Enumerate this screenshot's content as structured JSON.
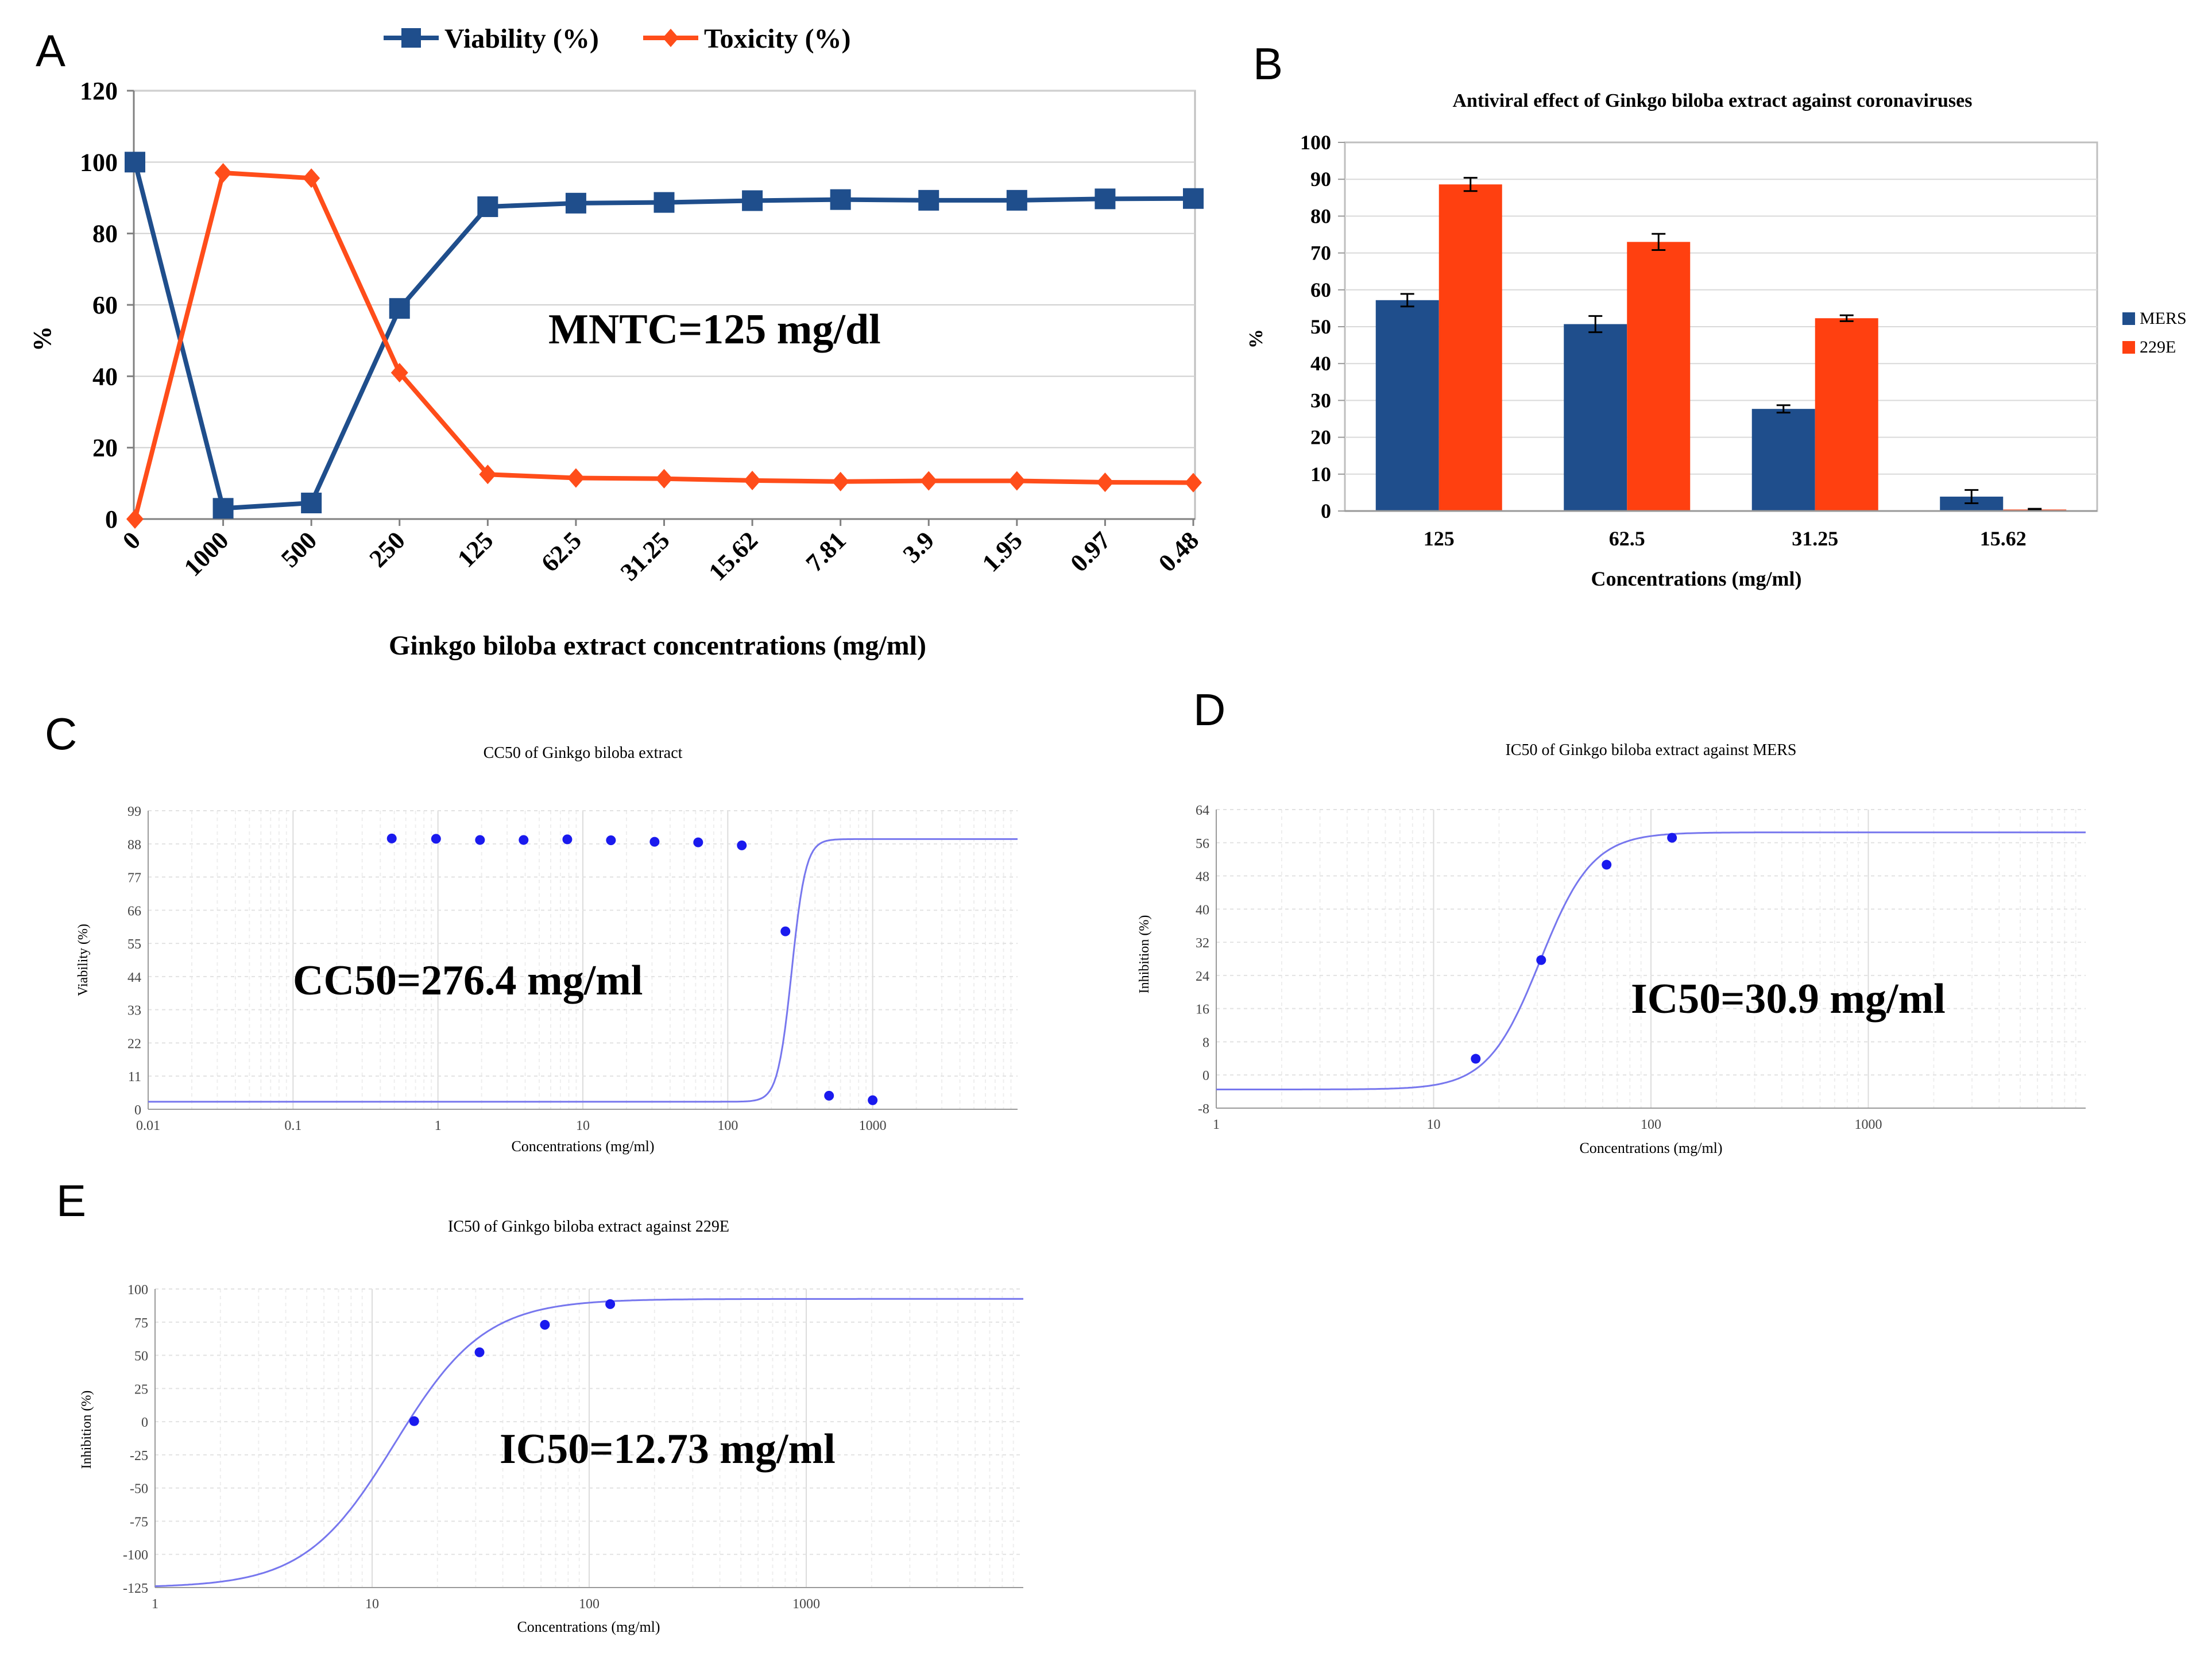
{
  "chart_data": [
    {
      "panel": "A",
      "type": "line",
      "title": "",
      "xlabel": "Ginkgo biloba extract concentrations (mg/ml)",
      "ylabel": "%",
      "categories": [
        "0",
        "1000",
        "500",
        "250",
        "125",
        "62.5",
        "31.25",
        "15.62",
        "7.81",
        "3.9",
        "1.95",
        "0.97",
        "0.48"
      ],
      "yticks": [
        "0",
        "20",
        "40",
        "60",
        "80",
        "100",
        "120"
      ],
      "ylim": [
        0,
        120
      ],
      "series": [
        {
          "name": "Viability (%)",
          "color": "#1f4e8c",
          "marker": "square",
          "values": [
            100,
            3,
            4.5,
            59,
            87.5,
            88.5,
            88.7,
            89.2,
            89.5,
            89.3,
            89.3,
            89.7,
            89.8
          ]
        },
        {
          "name": "Toxicity (%)",
          "color": "#ff4d1a",
          "marker": "diamond",
          "values": [
            0,
            97,
            95.5,
            41,
            12.5,
            11.5,
            11.3,
            10.8,
            10.5,
            10.7,
            10.7,
            10.3,
            10.2
          ]
        }
      ],
      "annotation": "MNTC=125 mg/dl",
      "legend": "top"
    },
    {
      "panel": "B",
      "type": "bar",
      "title": "Antiviral effect of Ginkgo biloba  extract against coronaviruses",
      "xlabel": "Concentrations (mg/ml)",
      "ylabel": "%",
      "categories": [
        "125",
        "62.5",
        "31.25",
        "15.62"
      ],
      "yticks": [
        "0",
        "10",
        "20",
        "30",
        "40",
        "50",
        "60",
        "70",
        "80",
        "90",
        "100"
      ],
      "ylim": [
        0,
        100
      ],
      "series": [
        {
          "name": "MERS",
          "color": "#1f4e8c",
          "values": [
            57.2,
            50.7,
            27.7,
            3.9
          ],
          "errors": [
            1.7,
            2.2,
            1.0,
            1.8
          ]
        },
        {
          "name": "229E",
          "color": "#ff4010",
          "values": [
            88.6,
            73.0,
            52.3,
            0.4
          ],
          "errors": [
            1.8,
            2.2,
            0.8,
            0.2
          ]
        }
      ],
      "legend": "right"
    },
    {
      "panel": "C",
      "type": "scatter",
      "title": "CC50 of Ginkgo biloba extract",
      "xlabel": "Concentrations (mg/ml)",
      "ylabel": "Viability (%)",
      "xscale": "log",
      "xlim": [
        0.01,
        10000
      ],
      "xticks": [
        "0.01",
        "0.1",
        "1",
        "10",
        "100",
        "1000"
      ],
      "ylim": [
        0,
        99
      ],
      "yticks": [
        "0",
        "11",
        "22",
        "33",
        "44",
        "55",
        "66",
        "77",
        "88",
        "99"
      ],
      "points": {
        "x": [
          0.48,
          0.97,
          1.95,
          3.9,
          7.81,
          15.62,
          31.25,
          62.5,
          125,
          250,
          500,
          1000
        ],
        "y": [
          89.8,
          89.7,
          89.3,
          89.3,
          89.5,
          89.2,
          88.7,
          88.5,
          87.5,
          59,
          4.5,
          3
        ]
      },
      "curve": {
        "bottom": 2.5,
        "top": 89.6,
        "x50": 276.4,
        "hill": 9
      },
      "annotation": "CC50=276.4 mg/ml"
    },
    {
      "panel": "D",
      "type": "scatter",
      "title": "IC50 of Ginkgo biloba extract against MERS",
      "xlabel": "Concentrations (mg/ml)",
      "ylabel": "Inhibition (%)",
      "xscale": "log",
      "xlim": [
        1,
        10000
      ],
      "xticks": [
        "1",
        "10",
        "100",
        "1000"
      ],
      "ylim": [
        -8,
        64
      ],
      "yticks": [
        "-8",
        "0",
        "8",
        "16",
        "24",
        "32",
        "40",
        "48",
        "56",
        "64"
      ],
      "points": {
        "x": [
          15.62,
          31.25,
          62.5,
          125
        ],
        "y": [
          3.9,
          27.7,
          50.7,
          57.2
        ]
      },
      "curve": {
        "bottom": -3.5,
        "top": 58.5,
        "x50": 30.9,
        "hill": 3.6
      },
      "annotation": "IC50=30.9 mg/ml"
    },
    {
      "panel": "E",
      "type": "scatter",
      "title": "IC50 of Ginkgo biloba extract against 229E",
      "xlabel": "Concentrations (mg/ml)",
      "ylabel": "Inhibition (%)",
      "xscale": "log",
      "xlim": [
        1,
        10000
      ],
      "xticks": [
        "1",
        "10",
        "100",
        "1000"
      ],
      "ylim": [
        -125,
        100
      ],
      "yticks": [
        "-125",
        "-100",
        "-75",
        "-50",
        "-25",
        "0",
        "25",
        "50",
        "75",
        "100"
      ],
      "points": {
        "x": [
          15.62,
          31.25,
          62.5,
          125
        ],
        "y": [
          0.4,
          52.3,
          73.0,
          88.6
        ]
      },
      "curve": {
        "bottom": -125,
        "top": 92.5,
        "x50": 12.73,
        "hill": 2.1
      },
      "annotation": "IC50=12.73 mg/ml"
    }
  ]
}
